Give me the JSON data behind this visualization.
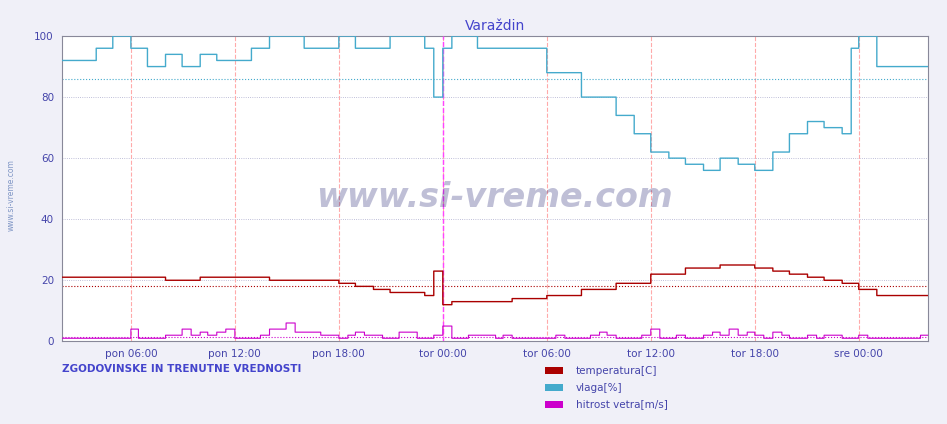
{
  "title": "Varaždin",
  "bg_color": "#f0f0f8",
  "plot_bg_color": "#ffffff",
  "ylim": [
    0,
    100
  ],
  "yticks": [
    0,
    20,
    40,
    60,
    80,
    100
  ],
  "xlabel_ticks": [
    "pon 06:00",
    "pon 12:00",
    "pon 18:00",
    "tor 00:00",
    "tor 06:00",
    "tor 12:00",
    "tor 18:00",
    "sre 00:00"
  ],
  "tick_hours": [
    6,
    12,
    18,
    24,
    30,
    36,
    42,
    48
  ],
  "start_hour": 2.0,
  "total_hours": 50.0,
  "n_points": 576,
  "temp_color": "#aa0000",
  "vlaga_color": "#44aacc",
  "wind_color": "#cc00cc",
  "grid_vcolor": "#ffaaaa",
  "grid_hcolor": "#aaaacc",
  "ref_temp": 18.0,
  "ref_vlaga": 86.0,
  "ref_wind": 1.5,
  "watermark": "www.si-vreme.com",
  "left_label": "ZGODOVINSKE IN TRENUTNE VREDNOSTI",
  "legend_labels": [
    "temperatura[C]",
    "vlaga[%]",
    "hitrost vetra[m/s]"
  ],
  "title_color": "#4444cc",
  "axis_color": "#4444aa",
  "vline_color": "#ff44ff",
  "side_text": "www.si-vreme.com"
}
